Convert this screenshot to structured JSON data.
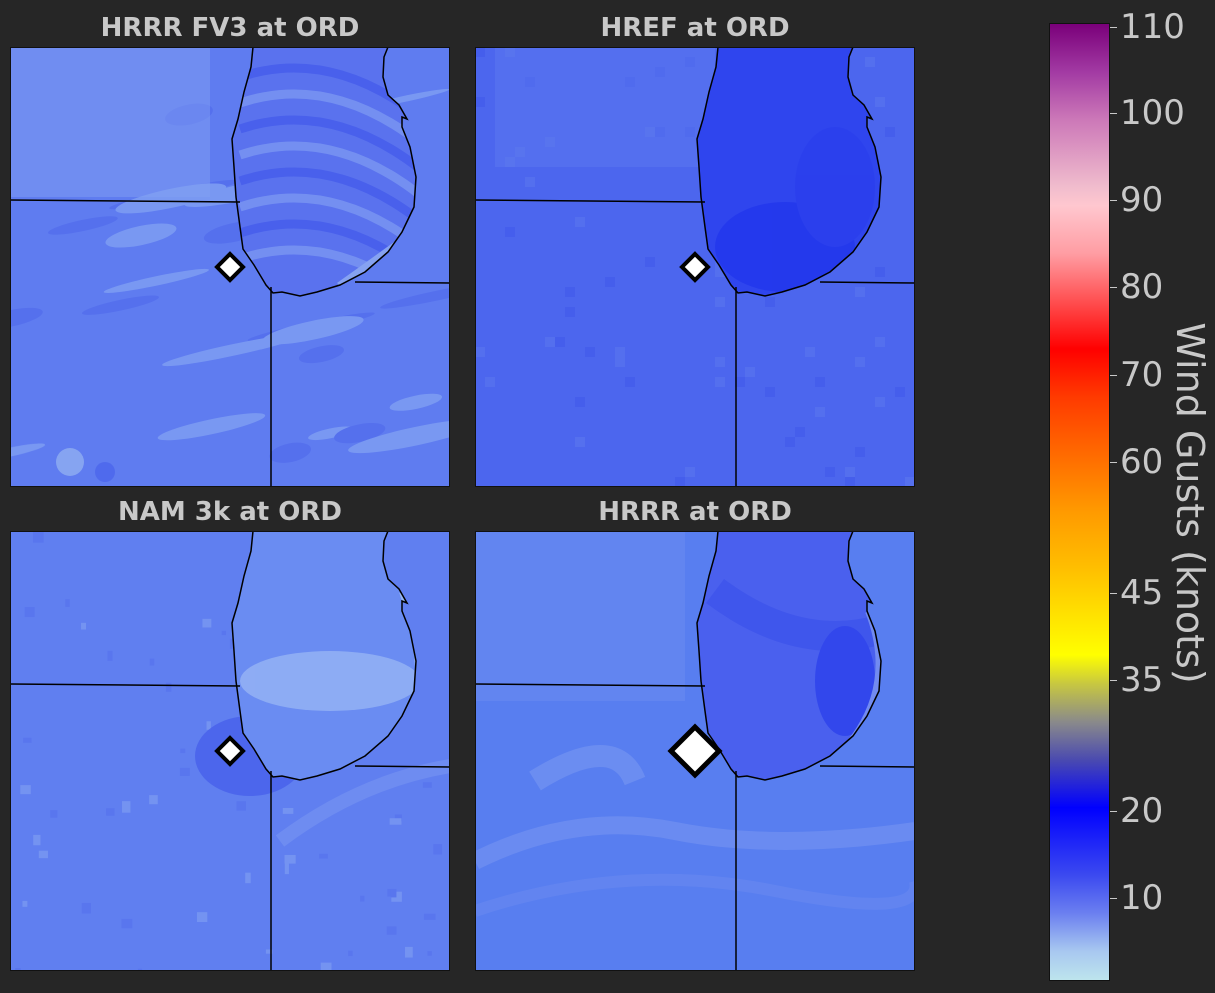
{
  "panels": [
    {
      "title": "HRRR FV3 at ORD",
      "base": "#5f7cf0",
      "lake": "#5a72ee",
      "texture": "streaks",
      "marker": "small"
    },
    {
      "title": "HREF at ORD",
      "base": "#4c66ee",
      "lake": "#2f45ee",
      "texture": "blocky",
      "marker": "small"
    },
    {
      "title": "NAM 3k at ORD",
      "base": "#607ff0",
      "lake": "#6a8cf2",
      "texture": "noise",
      "marker": "small"
    },
    {
      "title": "HRRR at ORD",
      "base": "#587ef0",
      "lake": "#4a60ee",
      "texture": "smooth",
      "marker": "large"
    }
  ],
  "colorbar": {
    "label": "Wind Gusts (knots)",
    "ticks": [
      "110",
      "100",
      "90",
      "80",
      "70",
      "60",
      "45",
      "35",
      "20",
      "10"
    ]
  },
  "colors": {
    "background": "#262626",
    "text": "#c8c8c8",
    "marker_fill": "#ffffff",
    "marker_edge": "#000000"
  }
}
